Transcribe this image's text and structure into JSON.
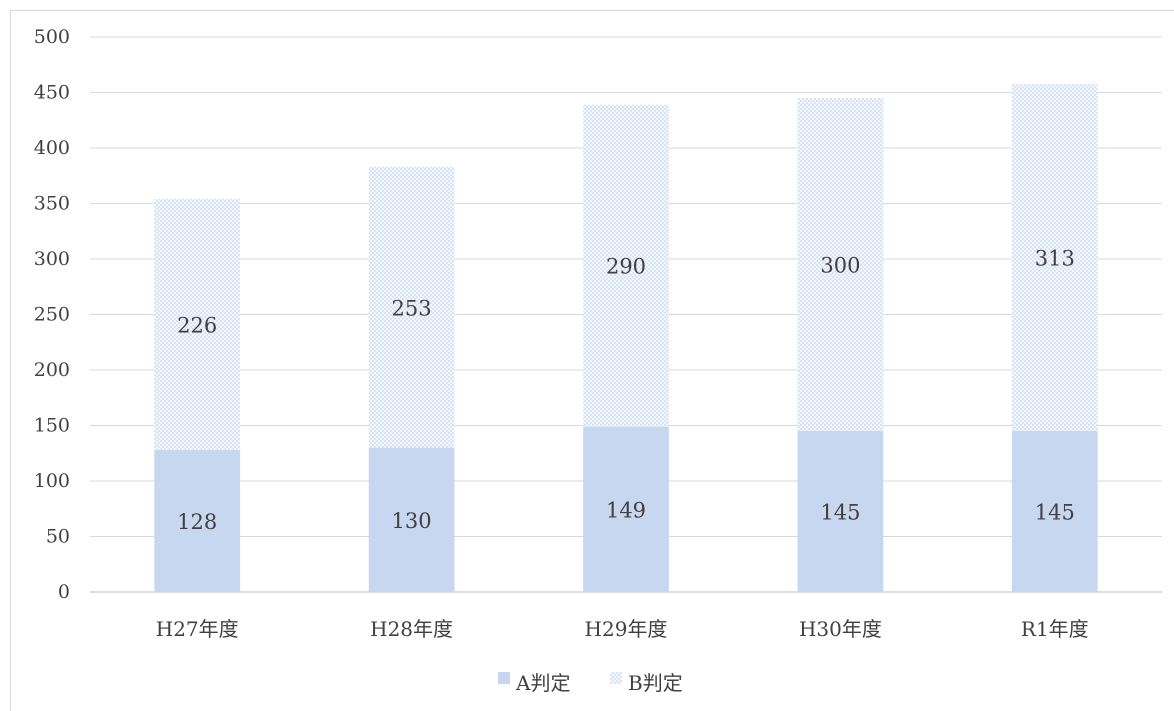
{
  "chart_data": {
    "type": "bar",
    "stacked": true,
    "categories": [
      "H27年度",
      "H28年度",
      "H29年度",
      "H30年度",
      "R1年度"
    ],
    "series": [
      {
        "name": "A判定",
        "values": [
          128,
          130,
          149,
          145,
          145
        ],
        "color": "#c7d7ef",
        "pattern": "solid"
      },
      {
        "name": "B判定",
        "values": [
          226,
          253,
          290,
          300,
          313
        ],
        "color": "#c7d7ef",
        "pattern": "dotted"
      }
    ],
    "y_ticks": [
      "0",
      "50",
      "100",
      "150",
      "200",
      "250",
      "300",
      "350",
      "400",
      "450",
      "500"
    ],
    "ylim": [
      0,
      500
    ],
    "grid": true,
    "legend_position": "bottom",
    "title": "",
    "xlabel": "",
    "ylabel": ""
  }
}
